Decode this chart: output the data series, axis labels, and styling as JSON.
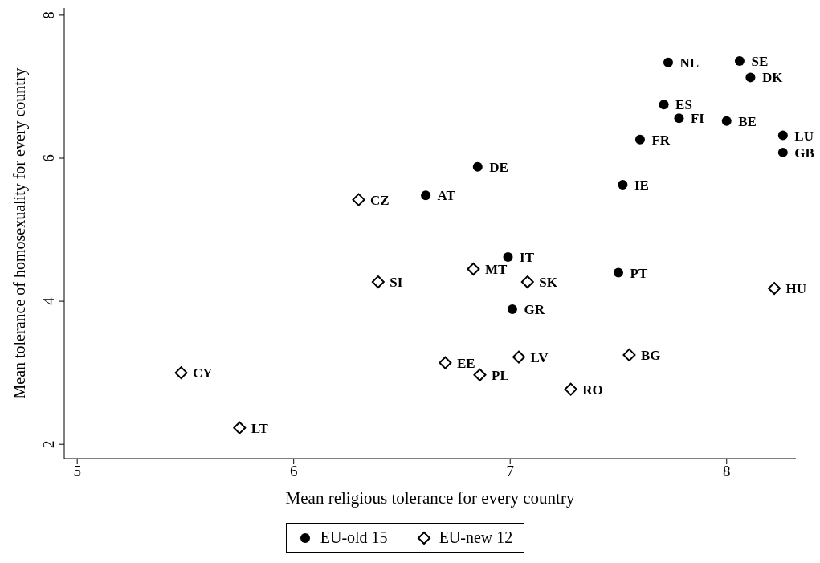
{
  "chart_data": {
    "type": "scatter",
    "xlabel": "Mean religious tolerance for every country",
    "ylabel": "Mean tolerance of homosexuality for every country",
    "xlim": [
      4.94,
      8.32
    ],
    "ylim": [
      1.8,
      8.1
    ],
    "xticks": [
      5,
      6,
      7,
      8
    ],
    "yticks": [
      2,
      4,
      6,
      8
    ],
    "grid": false,
    "legend": "bottom",
    "series": [
      {
        "name": "EU-old 15",
        "color": "#000000",
        "marker": "circle",
        "x": [
          7.73,
          8.06,
          8.11,
          7.71,
          7.78,
          8.0,
          8.26,
          8.26,
          7.6,
          6.85,
          7.52,
          6.61,
          6.99,
          7.5,
          7.01
        ],
        "values": [
          7.34,
          7.36,
          7.13,
          6.75,
          6.56,
          6.52,
          6.32,
          6.08,
          6.26,
          5.88,
          5.63,
          5.48,
          4.62,
          4.4,
          3.89
        ],
        "value_labels": [
          "NL",
          "SE",
          "DK",
          "ES",
          "FI",
          "BE",
          "LU",
          "GB",
          "FR",
          "DE",
          "IE",
          "AT",
          "IT",
          "PT",
          "GR"
        ]
      },
      {
        "name": "EU-new 12",
        "color": "#000000",
        "marker": "diamond",
        "x": [
          6.3,
          6.39,
          6.83,
          7.08,
          8.22,
          6.7,
          7.04,
          7.55,
          6.86,
          7.28,
          5.48,
          5.75
        ],
        "values": [
          5.42,
          4.27,
          4.45,
          4.27,
          4.18,
          3.14,
          3.22,
          3.25,
          2.97,
          2.77,
          3.0,
          2.23
        ],
        "value_labels": [
          "CZ",
          "SI",
          "MT",
          "SK",
          "HU",
          "EE",
          "LV",
          "BG",
          "PL",
          "RO",
          "CY",
          "LT"
        ]
      }
    ]
  }
}
